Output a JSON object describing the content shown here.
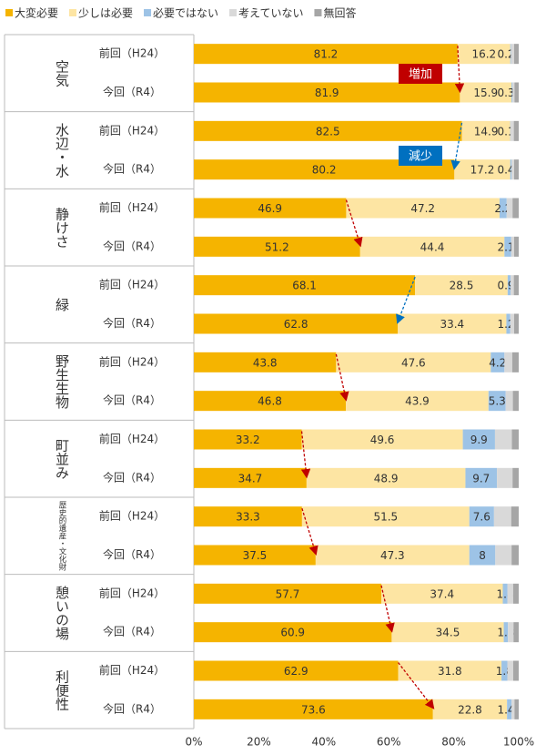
{
  "chart_data": {
    "type": "stacked_barh",
    "groups": [
      "空気",
      "水辺・水",
      "静けさ",
      "緑",
      "野生生物",
      "町並み",
      "歴史的遺産・文化財",
      "憩いの場",
      "利便性"
    ],
    "categories": [
      "前回（H24）",
      "今回（R4）",
      "前回（H24）",
      "今回（R4）",
      "前回（H24）",
      "今回（R4）",
      "前回（H24）",
      "今回（R4）",
      "前回（H24）",
      "今回（R4）",
      "前回（H24）",
      "今回（R4）",
      "前回（H24）",
      "今回（R4）",
      "前回（H24）",
      "今回（R4）",
      "前回（H24）",
      "今回（R4）"
    ],
    "series": [
      {
        "name": "大変必要",
        "color": "#f5b400",
        "show_labels": true,
        "values": [
          81.2,
          81.9,
          82.5,
          80.2,
          46.9,
          51.2,
          68.1,
          62.8,
          43.8,
          46.8,
          33.2,
          34.7,
          33.3,
          37.5,
          57.7,
          60.9,
          62.9,
          73.6
        ]
      },
      {
        "name": "少しは必要",
        "color": "#fde5a3",
        "show_labels": true,
        "values": [
          16.2,
          15.9,
          14.9,
          17.2,
          47.2,
          44.4,
          28.5,
          33.4,
          47.6,
          43.9,
          49.6,
          48.9,
          51.5,
          47.3,
          37.4,
          34.5,
          31.8,
          22.8
        ]
      },
      {
        "name": "必要ではない",
        "color": "#9dc3e6",
        "show_labels": true,
        "values": [
          0.2,
          0.3,
          0.1,
          0.4,
          2.2,
          2.1,
          0.9,
          1.2,
          4.2,
          5.3,
          9.9,
          9.7,
          7.6,
          8.0,
          1.4,
          1.3,
          1.8,
          1.4
        ]
      },
      {
        "name": "考えていない",
        "color": "#d9d9d9",
        "show_labels": false,
        "values": [
          1.0,
          0.6,
          1.0,
          0.8,
          1.8,
          0.9,
          1.0,
          1.2,
          2.4,
          2.2,
          5.2,
          4.8,
          5.3,
          5.0,
          1.8,
          1.7,
          1.8,
          0.9
        ]
      },
      {
        "name": "無回答",
        "color": "#a6a6a6",
        "show_labels": false,
        "values": [
          1.4,
          1.3,
          1.5,
          1.4,
          1.9,
          1.4,
          1.5,
          1.4,
          2.0,
          1.8,
          2.1,
          1.9,
          2.3,
          2.2,
          1.7,
          1.6,
          1.7,
          1.3
        ]
      }
    ],
    "xlim": [
      0,
      100
    ],
    "xticks": [
      {
        "value": 0,
        "label": "0%"
      },
      {
        "value": 20,
        "label": "20%"
      },
      {
        "value": 40,
        "label": "40%"
      },
      {
        "value": 60,
        "label": "60%"
      },
      {
        "value": 80,
        "label": "80%"
      },
      {
        "value": 100,
        "label": "100%"
      }
    ],
    "annotations": [
      {
        "text": "増加",
        "color": "#c00000"
      },
      {
        "text": "減少",
        "color": "#0070c0"
      }
    ],
    "legend": "top"
  }
}
